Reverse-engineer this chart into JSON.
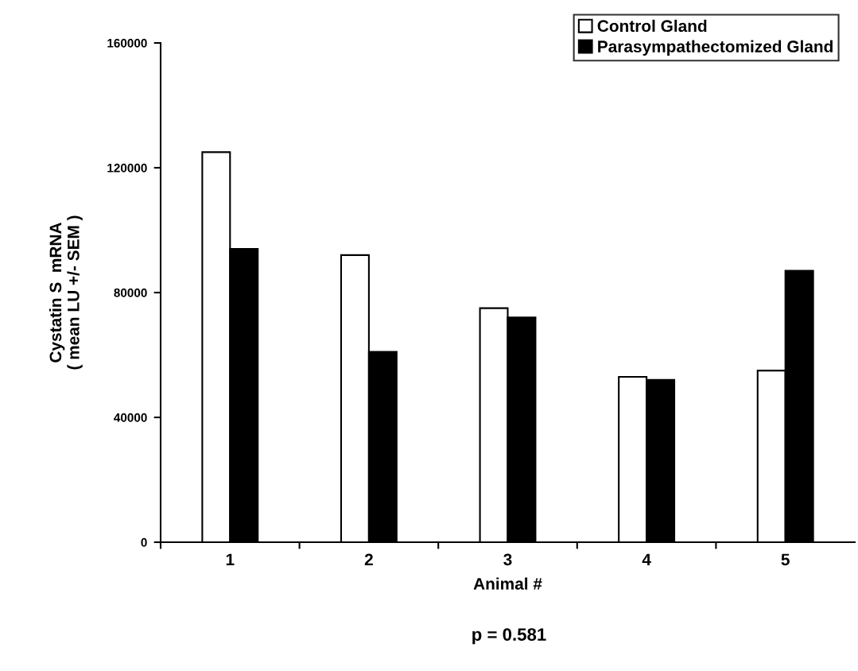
{
  "chart_data": {
    "type": "bar",
    "categories": [
      "1",
      "2",
      "3",
      "4",
      "5"
    ],
    "series": [
      {
        "name": "Control Gland",
        "color": "#ffffff",
        "values": [
          125000,
          92000,
          75000,
          53000,
          55000
        ]
      },
      {
        "name": "Parasympathectomized Gland",
        "color": "#000000",
        "values": [
          94000,
          61000,
          72000,
          52000,
          87000
        ]
      }
    ],
    "xlabel": "Animal #",
    "ylabel": "Cystatin S  mRNA\n( mean LU +/- SEM )",
    "ylim": [
      0,
      160000
    ],
    "yticks": [
      0,
      40000,
      80000,
      120000,
      160000
    ],
    "grid": false,
    "legend": "top right",
    "annotations": [
      "p = 0.581"
    ]
  }
}
